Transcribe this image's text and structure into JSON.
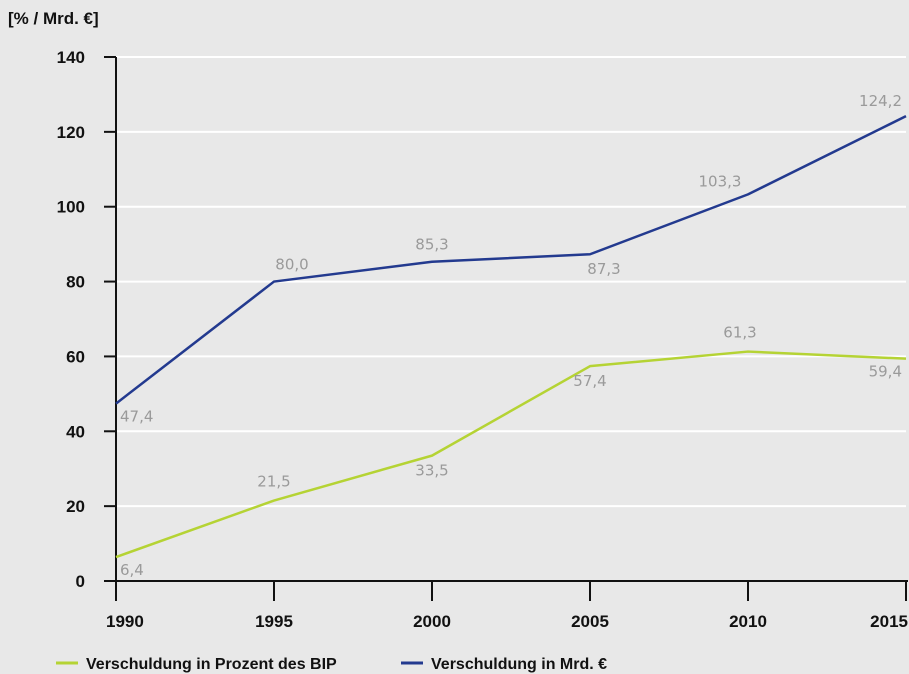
{
  "chart_data": {
    "type": "line",
    "ylabel": "[% / Mrd. €]",
    "x": [
      1990,
      1995,
      2000,
      2005,
      2010,
      2015
    ],
    "x_tick_labels": [
      "1990",
      "1995",
      "2000",
      "2005",
      "2010",
      "2015"
    ],
    "ylim": [
      0,
      140
    ],
    "y_ticks": [
      0,
      20,
      40,
      60,
      80,
      100,
      120,
      140
    ],
    "grid": true,
    "legend_placement": "bottom-left",
    "series": [
      {
        "name": "Verschuldung in Prozent des BIP",
        "color": "#b5d334",
        "values": [
          6.4,
          21.5,
          33.5,
          57.4,
          61.3,
          59.4
        ],
        "labels": [
          "6,4",
          "21,5",
          "33,5",
          "57,4",
          "61,3",
          "59,4"
        ]
      },
      {
        "name": "Verschuldung in Mrd. €",
        "color": "#233a8f",
        "values": [
          47.4,
          80.0,
          85.3,
          87.3,
          103.3,
          124.2
        ],
        "labels": [
          "47,4",
          "80,0",
          "85,3",
          "87,3",
          "103,3",
          "124,2"
        ]
      }
    ]
  }
}
